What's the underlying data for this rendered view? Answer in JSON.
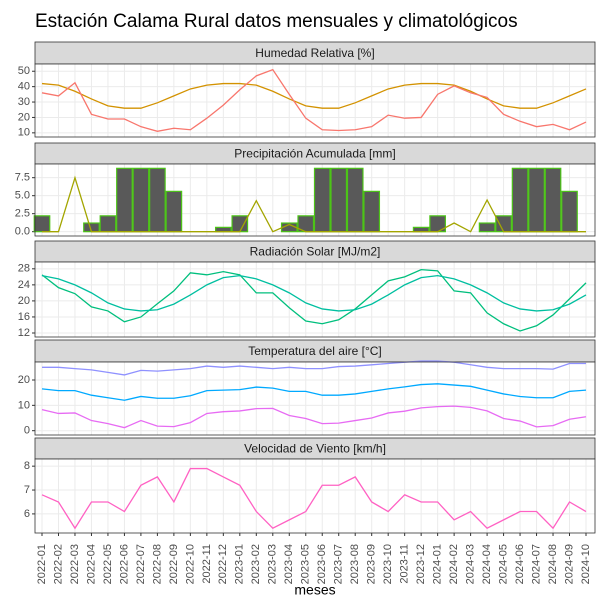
{
  "title": "Estación Calama Rural datos mensuales y climatológicos",
  "x_label": "meses",
  "categories": [
    "2022-01",
    "2022-02",
    "2022-03",
    "2022-04",
    "2022-05",
    "2022-06",
    "2022-07",
    "2022-08",
    "2022-09",
    "2022-10",
    "2022-11",
    "2022-12",
    "2023-01",
    "2023-02",
    "2023-03",
    "2023-04",
    "2023-05",
    "2023-06",
    "2023-07",
    "2023-08",
    "2023-09",
    "2023-10",
    "2023-11",
    "2023-12",
    "2024-01",
    "2024-02",
    "2024-03",
    "2024-04",
    "2024-05",
    "2024-06",
    "2024-07",
    "2024-08",
    "2024-09",
    "2024-10"
  ],
  "chart_data": [
    {
      "type": "line",
      "title": "Humedad Relativa [%]",
      "ylim": [
        7.3,
        54.7
      ],
      "yticks": [
        10,
        20,
        30,
        40,
        50
      ],
      "grid": true,
      "series": [
        {
          "type": "line",
          "color": "#D39200",
          "values": [
            42,
            41,
            37,
            32,
            27.5,
            26,
            26,
            29.5,
            34,
            38.5,
            41,
            42,
            42,
            41,
            37,
            32,
            27.5,
            26,
            26,
            29.5,
            34,
            38.5,
            41,
            42,
            42,
            41,
            37,
            32,
            27.5,
            26,
            26,
            29.5,
            34,
            38.5
          ]
        },
        {
          "type": "line",
          "color": "#F8766D",
          "values": [
            36,
            34,
            42.5,
            22,
            19,
            19,
            14,
            11,
            13,
            12,
            19.5,
            28,
            38,
            47,
            51,
            35,
            19.5,
            12,
            11.5,
            12,
            14,
            21.5,
            19.5,
            20,
            35,
            40.5,
            36,
            33,
            22,
            17.5,
            14,
            15.5,
            12,
            17
          ]
        }
      ]
    },
    {
      "type": "bar_line",
      "title": "Precipitación Acumulada [mm]",
      "ylim": [
        -0.6,
        9.4
      ],
      "yticks": [
        {
          "value": 0,
          "label": "0.0"
        },
        2.5,
        {
          "value": 5,
          "label": "5.0"
        },
        7.5
      ],
      "grid": true,
      "series": [
        {
          "type": "bar",
          "color": "#595959",
          "edge_color": "#4CC417",
          "values": [
            2.2,
            0,
            0,
            1.2,
            2.2,
            8.8,
            8.8,
            8.8,
            5.6,
            0,
            0,
            0.6,
            2.2,
            0,
            0,
            1.2,
            2.2,
            8.8,
            8.8,
            8.8,
            5.6,
            0,
            0,
            0.6,
            2.2,
            0,
            0,
            1.2,
            2.2,
            8.8,
            8.8,
            8.8,
            5.6,
            0
          ]
        },
        {
          "type": "line",
          "color": "#A3A500",
          "values": [
            0,
            0,
            7.5,
            0,
            0,
            0,
            0,
            0,
            0,
            0,
            0,
            0,
            0,
            4.3,
            0,
            1.0,
            0,
            0,
            0,
            0,
            0,
            0,
            0,
            0,
            0,
            1.2,
            0,
            4.4,
            0,
            0,
            0,
            0,
            0,
            0
          ]
        }
      ]
    },
    {
      "type": "line",
      "title": "Radiación Solar [MJ/m2]",
      "ylim": [
        11.0,
        29.7
      ],
      "yticks": [
        12,
        16,
        20,
        24,
        28
      ],
      "grid": true,
      "series": [
        {
          "type": "line",
          "color": "#00BF7D",
          "values": [
            26.5,
            23.3,
            21.8,
            18.5,
            17.5,
            14.8,
            16,
            19.3,
            22.5,
            27,
            26.5,
            27.3,
            26.5,
            22,
            22,
            18.3,
            15,
            14.3,
            15.3,
            18,
            21.5,
            25,
            26,
            27.8,
            27.5,
            22.5,
            22,
            17,
            14.3,
            12.5,
            13.8,
            16.5,
            20.5,
            24.5
          ]
        },
        {
          "type": "line",
          "color": "#00BFA0",
          "values": [
            26.3,
            25.5,
            24,
            22,
            19.5,
            18,
            17.5,
            17.8,
            19.2,
            21.5,
            24,
            25.8,
            26.3,
            25.5,
            24,
            22,
            19.5,
            18,
            17.5,
            17.8,
            19.2,
            21.5,
            24,
            25.8,
            26.3,
            25.5,
            24,
            22,
            19.5,
            18,
            17.5,
            17.8,
            19.2,
            21.5
          ]
        }
      ]
    },
    {
      "type": "line",
      "title": "Temperatura del aire [°C]",
      "ylim": [
        -1.7,
        27.1
      ],
      "yticks": [
        0,
        10,
        20
      ],
      "grid": true,
      "series": [
        {
          "type": "line",
          "color": "#8F91FF",
          "values": [
            25,
            25,
            24.5,
            24,
            23,
            22,
            23.8,
            23.5,
            24,
            24.5,
            25.5,
            25,
            25.5,
            25,
            24.5,
            25,
            24.5,
            24.5,
            25.3,
            25.5,
            26,
            26.5,
            27,
            27.5,
            27.5,
            27,
            26,
            25,
            24.5,
            24.5,
            24.5,
            24.3,
            26.5,
            26.5
          ]
        },
        {
          "type": "line",
          "color": "#00A9FF",
          "values": [
            16.5,
            15.8,
            15.8,
            14,
            13,
            12,
            13.5,
            12.8,
            12.8,
            13.8,
            15.8,
            16,
            16.2,
            17.2,
            16.8,
            15.5,
            15.5,
            14,
            14,
            14.5,
            15.5,
            16.5,
            17.3,
            18.2,
            18.5,
            18,
            17.5,
            16,
            14.5,
            13.5,
            13,
            13,
            15.5,
            16
          ]
        },
        {
          "type": "line",
          "color": "#E76BF3",
          "values": [
            8.3,
            6.8,
            7,
            4,
            2.8,
            1.2,
            4,
            1.8,
            1.6,
            3.2,
            6.8,
            7.5,
            7.8,
            8.7,
            8.8,
            6,
            4.8,
            2.8,
            3,
            4,
            5,
            7,
            7.7,
            9,
            9.5,
            9.7,
            9.2,
            7.8,
            4.8,
            3.8,
            1.5,
            2,
            4.5,
            5.5
          ]
        }
      ]
    },
    {
      "type": "line",
      "title": "Velocidad de Viento [km/h]",
      "ylim": [
        5.2,
        8.3
      ],
      "yticks": [
        6,
        7,
        8
      ],
      "grid": true,
      "series": [
        {
          "type": "line",
          "color": "#FF61C3",
          "values": [
            6.8,
            6.5,
            5.4,
            6.5,
            6.5,
            6.1,
            7.2,
            7.55,
            6.5,
            7.9,
            7.9,
            7.55,
            7.2,
            6.1,
            5.4,
            5.75,
            6.1,
            7.2,
            7.2,
            7.55,
            6.5,
            6.1,
            6.8,
            6.5,
            6.5,
            5.75,
            6.1,
            5.4,
            5.75,
            6.1,
            6.1,
            5.4,
            6.5,
            6.1
          ]
        }
      ]
    }
  ]
}
